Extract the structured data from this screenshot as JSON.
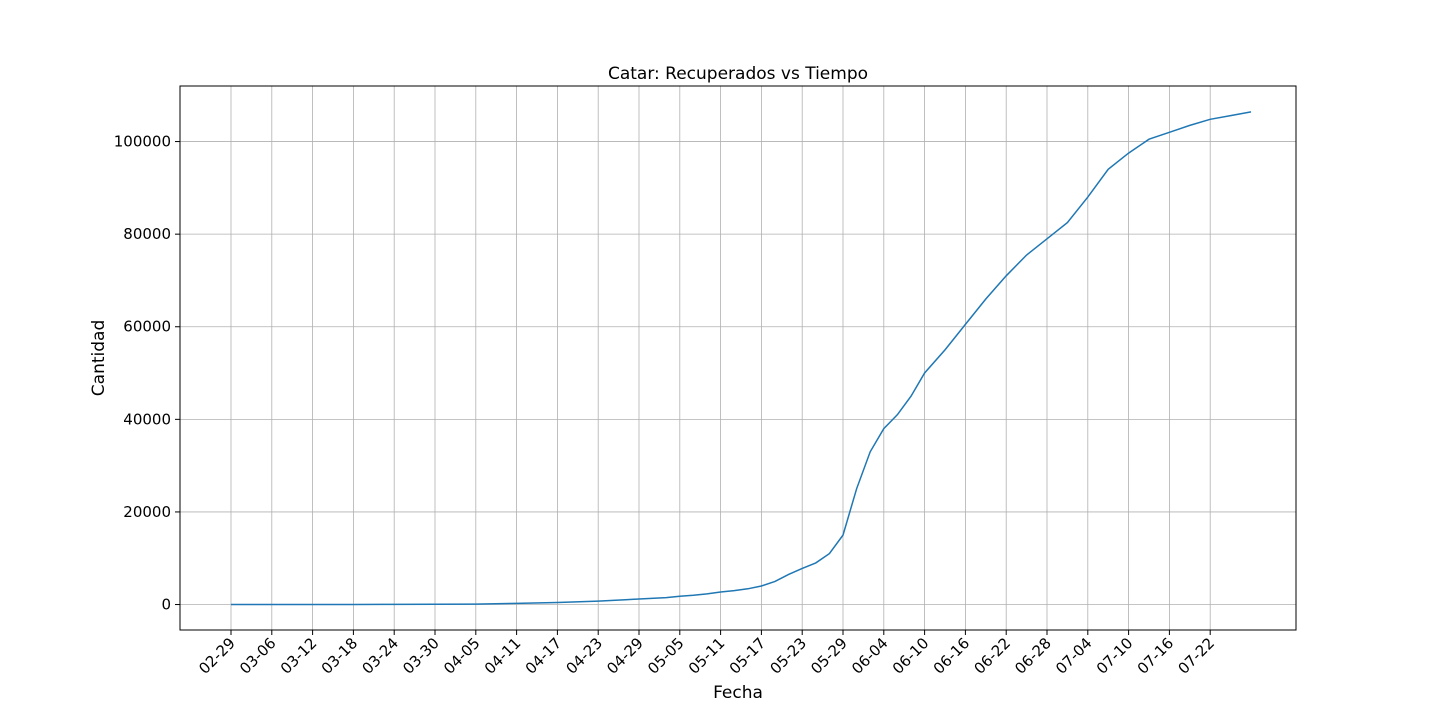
{
  "chart_data": {
    "type": "line",
    "title": "Catar: Recuperados vs Tiempo",
    "xlabel": "Fecha",
    "ylabel": "Cantidad",
    "grid": true,
    "x_tick_labels": [
      "02-29",
      "03-06",
      "03-12",
      "03-18",
      "03-24",
      "03-30",
      "04-05",
      "04-11",
      "04-17",
      "04-23",
      "04-29",
      "05-05",
      "05-11",
      "05-17",
      "05-23",
      "05-29",
      "06-04",
      "06-10",
      "06-16",
      "06-22",
      "06-28",
      "07-04",
      "07-10",
      "07-16",
      "07-22"
    ],
    "y_ticks": [
      0,
      20000,
      40000,
      60000,
      80000,
      100000
    ],
    "y_tick_labels": [
      "0",
      "20000",
      "40000",
      "60000",
      "80000",
      "100000"
    ],
    "ylim": [
      -5500,
      112000
    ],
    "x_start": "2020-02-29",
    "x_end": "2020-07-28",
    "series": [
      {
        "color": "#1f77b4",
        "points": [
          [
            "2020-02-29",
            0
          ],
          [
            "2020-03-06",
            0
          ],
          [
            "2020-03-12",
            0
          ],
          [
            "2020-03-18",
            10
          ],
          [
            "2020-03-24",
            30
          ],
          [
            "2020-03-30",
            60
          ],
          [
            "2020-04-05",
            100
          ],
          [
            "2020-04-11",
            250
          ],
          [
            "2020-04-17",
            450
          ],
          [
            "2020-04-23",
            750
          ],
          [
            "2020-04-27",
            1050
          ],
          [
            "2020-04-29",
            1200
          ],
          [
            "2020-05-03",
            1500
          ],
          [
            "2020-05-05",
            1800
          ],
          [
            "2020-05-07",
            2000
          ],
          [
            "2020-05-09",
            2300
          ],
          [
            "2020-05-11",
            2700
          ],
          [
            "2020-05-13",
            3000
          ],
          [
            "2020-05-15",
            3400
          ],
          [
            "2020-05-17",
            4000
          ],
          [
            "2020-05-19",
            5000
          ],
          [
            "2020-05-21",
            6500
          ],
          [
            "2020-05-23",
            7800
          ],
          [
            "2020-05-25",
            9000
          ],
          [
            "2020-05-27",
            11000
          ],
          [
            "2020-05-29",
            15000
          ],
          [
            "2020-05-31",
            25000
          ],
          [
            "2020-06-02",
            33000
          ],
          [
            "2020-06-04",
            38000
          ],
          [
            "2020-06-06",
            41000
          ],
          [
            "2020-06-08",
            45000
          ],
          [
            "2020-06-10",
            50000
          ],
          [
            "2020-06-13",
            55000
          ],
          [
            "2020-06-16",
            60500
          ],
          [
            "2020-06-19",
            66000
          ],
          [
            "2020-06-22",
            71000
          ],
          [
            "2020-06-25",
            75500
          ],
          [
            "2020-06-28",
            79000
          ],
          [
            "2020-07-01",
            82500
          ],
          [
            "2020-07-04",
            88000
          ],
          [
            "2020-07-07",
            94000
          ],
          [
            "2020-07-10",
            97500
          ],
          [
            "2020-07-13",
            100500
          ],
          [
            "2020-07-16",
            102000
          ],
          [
            "2020-07-19",
            103500
          ],
          [
            "2020-07-22",
            104800
          ],
          [
            "2020-07-25",
            105600
          ],
          [
            "2020-07-28",
            106400
          ]
        ]
      }
    ]
  }
}
